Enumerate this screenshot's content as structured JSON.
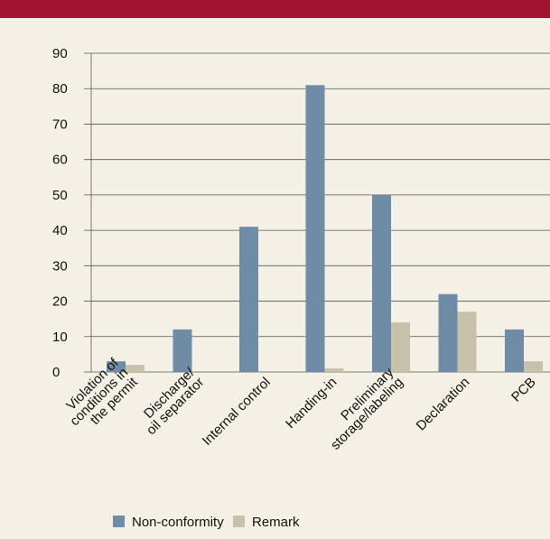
{
  "chart_data": {
    "type": "bar",
    "categories": [
      [
        "Violation of",
        "conditions in",
        "the permit"
      ],
      [
        "Discharge/",
        "oil separator"
      ],
      [
        "Internal control"
      ],
      [
        "Handing-in"
      ],
      [
        "Preliminary",
        "storage/labeling"
      ],
      [
        "Declaration"
      ],
      [
        "PCB"
      ]
    ],
    "series": [
      {
        "name": "Non-conformity",
        "color": "#6f8ca6",
        "values": [
          3,
          12,
          41,
          81,
          50,
          22,
          12
        ]
      },
      {
        "name": "Remark",
        "color": "#c8c1a9",
        "values": [
          2,
          0,
          0,
          1,
          14,
          17,
          3
        ]
      }
    ],
    "ylim": [
      0,
      90
    ],
    "yticks": [
      0,
      10,
      20,
      30,
      40,
      50,
      60,
      70,
      80,
      90
    ],
    "grid": true,
    "legend": "bottom"
  }
}
